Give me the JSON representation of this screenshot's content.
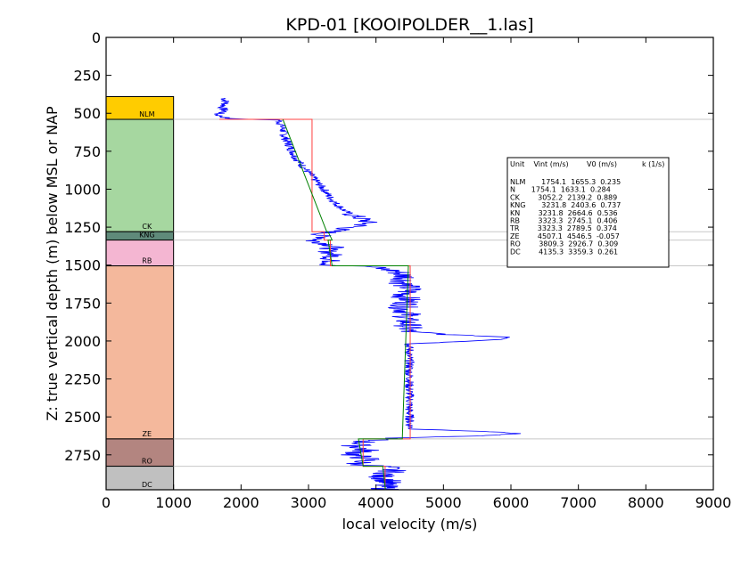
{
  "chart_data": {
    "type": "line",
    "title": "KPD-01 [KOOIPOLDER__1.las]",
    "xlabel": "local velocity (m/s)",
    "ylabel": "Z: true vertical depth (m) below MSL or NAP",
    "xlim": [
      0,
      9000
    ],
    "ylim": [
      2980,
      0
    ],
    "x_ticks": [
      "0",
      "1000",
      "2000",
      "3000",
      "4000",
      "5000",
      "6000",
      "7000",
      "8000",
      "9000"
    ],
    "y_ticks": [
      "0",
      "250",
      "500",
      "750",
      "1000",
      "1250",
      "1500",
      "1750",
      "2000",
      "2250",
      "2500",
      "2750"
    ],
    "grid": false,
    "units": [
      {
        "name": "NLM",
        "top": 390,
        "base": 540,
        "color": "#ffcc00"
      },
      {
        "name": "CK",
        "top": 540,
        "base": 1280,
        "color": "#a6d7a0"
      },
      {
        "name": "KNG",
        "top": 1280,
        "base": 1335,
        "color": "#5f8a7a"
      },
      {
        "name": "RB",
        "top": 1335,
        "base": 1505,
        "color": "#f4b6d2"
      },
      {
        "name": "ZE",
        "top": 1505,
        "base": 2645,
        "color": "#f4b89c"
      },
      {
        "name": "RO",
        "top": 2645,
        "base": 2825,
        "color": "#b38580"
      },
      {
        "name": "DC",
        "top": 2825,
        "base": 2980,
        "color": "#c0c0c0"
      }
    ],
    "boundaries": [
      540,
      1280,
      1335,
      1505,
      2645,
      2825
    ],
    "interval_velocity": [
      {
        "top": 540,
        "base": 1280,
        "vint": 3052.2
      },
      {
        "top": 1280,
        "base": 1335,
        "vint": 3231.8
      },
      {
        "top": 1335,
        "base": 1505,
        "vint": 3323.3
      },
      {
        "top": 1505,
        "base": 2645,
        "vint": 4507.1
      },
      {
        "top": 2645,
        "base": 2825,
        "vint": 3809.3
      },
      {
        "top": 2825,
        "base": 2980,
        "vint": 4135.3
      }
    ],
    "nlm_vint_segment": {
      "top": 540,
      "vint": 3052.2
    },
    "v0k_model": [
      {
        "top": 540,
        "base": 1280,
        "v_top": 2620,
        "v_base": 3270
      },
      {
        "top": 1280,
        "base": 1335,
        "v_top": 3290,
        "v_base": 3350
      },
      {
        "top": 1335,
        "base": 1505,
        "v_top": 3290,
        "v_base": 3350
      },
      {
        "top": 1505,
        "base": 2645,
        "v_top": 4480,
        "v_base": 4390
      },
      {
        "top": 2645,
        "base": 2825,
        "v_top": 3740,
        "v_base": 3810
      },
      {
        "top": 2825,
        "base": 2980,
        "v_top": 4100,
        "v_base": 4140
      }
    ],
    "log_profile": [
      [
        400,
        1750
      ],
      [
        430,
        1780
      ],
      [
        460,
        1720
      ],
      [
        490,
        1760
      ],
      [
        505,
        1640
      ],
      [
        520,
        1700
      ],
      [
        535,
        1820
      ],
      [
        545,
        2560
      ],
      [
        600,
        2620
      ],
      [
        650,
        2640
      ],
      [
        700,
        2700
      ],
      [
        750,
        2760
      ],
      [
        800,
        2820
      ],
      [
        850,
        2920
      ],
      [
        900,
        3020
      ],
      [
        950,
        3120
      ],
      [
        1000,
        3230
      ],
      [
        1050,
        3310
      ],
      [
        1100,
        3420
      ],
      [
        1150,
        3560
      ],
      [
        1180,
        3700
      ],
      [
        1200,
        3820
      ],
      [
        1220,
        3880
      ],
      [
        1240,
        3760
      ],
      [
        1260,
        3530
      ],
      [
        1280,
        3340
      ],
      [
        1300,
        3150
      ],
      [
        1320,
        3260
      ],
      [
        1340,
        3050
      ],
      [
        1360,
        3280
      ],
      [
        1380,
        3400
      ],
      [
        1400,
        3260
      ],
      [
        1420,
        3320
      ],
      [
        1440,
        3380
      ],
      [
        1460,
        3300
      ],
      [
        1480,
        3340
      ],
      [
        1500,
        3280
      ],
      [
        1510,
        3900
      ],
      [
        1540,
        4300
      ],
      [
        1580,
        4450
      ],
      [
        1620,
        4400
      ],
      [
        1660,
        4500
      ],
      [
        1700,
        4420
      ],
      [
        1740,
        4480
      ],
      [
        1780,
        4400
      ],
      [
        1820,
        4470
      ],
      [
        1860,
        4430
      ],
      [
        1900,
        4480
      ],
      [
        1940,
        4460
      ],
      [
        1960,
        5200
      ],
      [
        1975,
        6000
      ],
      [
        1990,
        5900
      ],
      [
        2005,
        5200
      ],
      [
        2020,
        4480
      ],
      [
        2060,
        4500
      ],
      [
        2100,
        4480
      ],
      [
        2150,
        4500
      ],
      [
        2200,
        4490
      ],
      [
        2250,
        4500
      ],
      [
        2300,
        4490
      ],
      [
        2350,
        4500
      ],
      [
        2400,
        4500
      ],
      [
        2450,
        4490
      ],
      [
        2500,
        4500
      ],
      [
        2550,
        4500
      ],
      [
        2580,
        4520
      ],
      [
        2595,
        5600
      ],
      [
        2610,
        6150
      ],
      [
        2625,
        5500
      ],
      [
        2640,
        4200
      ],
      [
        2660,
        3850
      ],
      [
        2690,
        3700
      ],
      [
        2720,
        3850
      ],
      [
        2750,
        3650
      ],
      [
        2780,
        3900
      ],
      [
        2810,
        3700
      ],
      [
        2830,
        4150
      ],
      [
        2860,
        4250
      ],
      [
        2890,
        4050
      ],
      [
        2920,
        4200
      ],
      [
        2950,
        4100
      ],
      [
        2980,
        4150
      ]
    ],
    "table": {
      "header": "Unit    Vint (m/s)        V0 (m/s)           k (1/s)",
      "rows": [
        "NLM       1754.1  1655.3  0.235",
        "N       1754.1  1633.1  0.284",
        "CK        3052.2  2139.2  0.889",
        "KNG       3231.8  2403.6  0.737",
        "KN        3231.8  2664.6  0.536",
        "RB        3323.3  2745.1  0.406",
        "TR        3323.3  2789.5  0.374",
        "ZE        4507.1  4546.5  -0.057",
        "RO        3809.3  2926.7  0.309",
        "DC        4135.3  3359.3  0.261"
      ]
    },
    "colors": {
      "log": "#0000ff",
      "vint": "#ff4040",
      "model": "#008000",
      "boundary": "#c8c8c8"
    }
  }
}
